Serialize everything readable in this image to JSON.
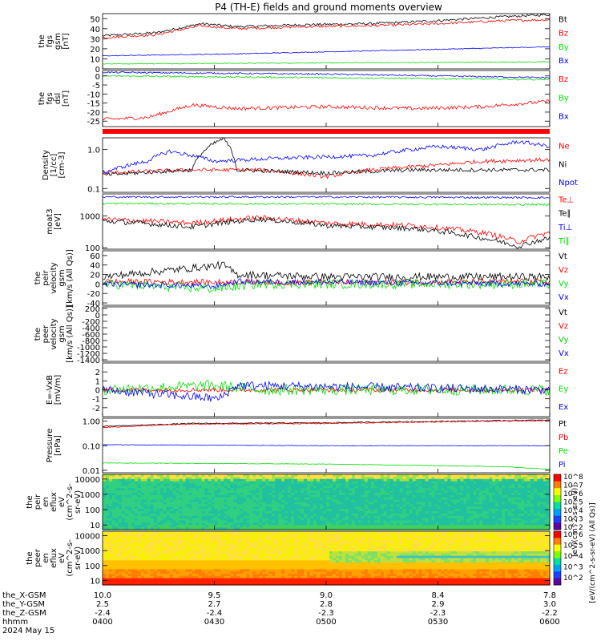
{
  "title": "P4 (TH-E) fields and ground moments overview",
  "colors": {
    "black": "#000000",
    "red": "#ff0000",
    "blue": "#0000ff",
    "green": "#00dd00"
  },
  "chart_data": [
    {
      "id": "p1",
      "type": "line",
      "ylabel": [
        "the",
        "fgs",
        "gsm",
        "[nT]"
      ],
      "ylim": [
        0,
        55
      ],
      "yticks": [
        0,
        10,
        20,
        30,
        40,
        50
      ],
      "series": [
        {
          "name": "Bt",
          "color": "black",
          "points": [
            [
              0,
              33
            ],
            [
              0.12,
              36
            ],
            [
              0.22,
              45
            ],
            [
              0.3,
              42
            ],
            [
              0.45,
              44
            ],
            [
              0.6,
              45
            ],
            [
              0.75,
              48
            ],
            [
              0.9,
              52
            ],
            [
              1,
              54
            ]
          ],
          "noise": 1.2
        },
        {
          "name": "Bz",
          "color": "red",
          "points": [
            [
              0,
              31
            ],
            [
              0.12,
              34
            ],
            [
              0.22,
              43
            ],
            [
              0.3,
              40
            ],
            [
              0.45,
              42
            ],
            [
              0.6,
              43
            ],
            [
              0.75,
              45
            ],
            [
              0.9,
              48
            ],
            [
              1,
              49
            ]
          ],
          "noise": 1.2
        },
        {
          "name": "By",
          "color": "green",
          "points": [
            [
              0,
              5
            ],
            [
              0.5,
              6
            ],
            [
              1,
              7
            ]
          ],
          "noise": 0.4
        },
        {
          "name": "Bx",
          "color": "blue",
          "points": [
            [
              0,
              13
            ],
            [
              0.3,
              15
            ],
            [
              0.6,
              18
            ],
            [
              1,
              22
            ]
          ],
          "noise": 0.4
        }
      ],
      "legend": [
        "Bt",
        "Bz",
        "By",
        "Bx"
      ]
    },
    {
      "id": "p2",
      "type": "line",
      "ylabel": [
        "the",
        "fgs",
        "dsl",
        "[nT]"
      ],
      "ylim": [
        -28,
        3
      ],
      "yticks": [
        -25,
        -20,
        -15,
        -10,
        -5,
        0
      ],
      "series": [
        {
          "name": "Bz",
          "color": "red",
          "points": [
            [
              0,
              -24
            ],
            [
              0.1,
              -23
            ],
            [
              0.2,
              -16
            ],
            [
              0.3,
              -18
            ],
            [
              0.5,
              -17
            ],
            [
              0.7,
              -18
            ],
            [
              0.85,
              -17
            ],
            [
              1,
              -14
            ]
          ],
          "noise": 1.0
        },
        {
          "name": "By",
          "color": "green",
          "points": [
            [
              0,
              0
            ],
            [
              0.5,
              -1
            ],
            [
              1,
              -2
            ]
          ],
          "noise": 0.4
        },
        {
          "name": "Bx",
          "color": "blue",
          "points": [
            [
              0,
              2
            ],
            [
              0.5,
              1
            ],
            [
              1,
              -1
            ]
          ],
          "noise": 0.4
        }
      ],
      "legend": [
        "Bz",
        "By",
        "Bx"
      ]
    },
    {
      "id": "p3",
      "type": "line",
      "ylabel": [
        "Density",
        "[1/cc]",
        "[cm-3]"
      ],
      "ylim": [
        0.08,
        2.0
      ],
      "log": true,
      "yticks": [
        0.1,
        1.0
      ],
      "yticklabels": [
        "0.1",
        "1.0"
      ],
      "series": [
        {
          "name": "Ne",
          "color": "red",
          "points": [
            [
              0,
              0.25
            ],
            [
              0.2,
              0.3
            ],
            [
              0.35,
              0.3
            ],
            [
              0.5,
              0.2
            ],
            [
              0.6,
              0.3
            ],
            [
              0.75,
              0.4
            ],
            [
              0.85,
              0.5
            ],
            [
              1,
              0.55
            ]
          ],
          "noise": 0.05
        },
        {
          "name": "Ni",
          "color": "black",
          "points": [
            [
              0,
              0.22
            ],
            [
              0.2,
              0.3
            ],
            [
              0.27,
              1.9
            ],
            [
              0.3,
              0.3
            ],
            [
              0.5,
              0.25
            ],
            [
              0.7,
              0.3
            ],
            [
              1,
              0.3
            ]
          ],
          "noise": 0.05
        },
        {
          "name": "Npot",
          "color": "blue",
          "points": [
            [
              0,
              0.25
            ],
            [
              0.1,
              0.5
            ],
            [
              0.15,
              0.9
            ],
            [
              0.25,
              0.5
            ],
            [
              0.4,
              0.6
            ],
            [
              0.6,
              0.7
            ],
            [
              0.75,
              1.2
            ],
            [
              0.85,
              1.0
            ],
            [
              0.93,
              1.6
            ],
            [
              1,
              1.2
            ]
          ],
          "noise": 0.05
        }
      ],
      "legend": [
        "Ne",
        "Ni",
        "Npot"
      ]
    },
    {
      "id": "p4",
      "type": "line",
      "ylabel": [
        "moat3",
        "[eV]"
      ],
      "ylim": [
        90,
        5000
      ],
      "log": true,
      "yticks": [
        100,
        1000
      ],
      "yticklabels": [
        "100",
        "1000"
      ],
      "series": [
        {
          "name": "Te⊥",
          "color": "red",
          "points": [
            [
              0,
              800
            ],
            [
              0.2,
              600
            ],
            [
              0.35,
              900
            ],
            [
              0.5,
              600
            ],
            [
              0.7,
              500
            ],
            [
              0.85,
              300
            ],
            [
              0.93,
              150
            ],
            [
              1,
              300
            ]
          ],
          "noise": 0.08
        },
        {
          "name": "Te∥",
          "color": "black",
          "points": [
            [
              0,
              700
            ],
            [
              0.2,
              450
            ],
            [
              0.35,
              800
            ],
            [
              0.5,
              500
            ],
            [
              0.7,
              400
            ],
            [
              0.85,
              200
            ],
            [
              0.93,
              110
            ],
            [
              1,
              200
            ]
          ],
          "noise": 0.08
        },
        {
          "name": "Ti⊥",
          "color": "blue",
          "points": [
            [
              0,
              4000
            ],
            [
              0.5,
              4000
            ],
            [
              1,
              3800
            ]
          ],
          "noise": 0.03
        },
        {
          "name": "Ti∥",
          "color": "green",
          "points": [
            [
              0,
              2500
            ],
            [
              0.5,
              2400
            ],
            [
              1,
              2300
            ]
          ],
          "noise": 0.03
        }
      ],
      "legend": [
        "Te⊥",
        "Te∥",
        "Ti⊥",
        "Ti∥"
      ]
    },
    {
      "id": "p5",
      "type": "line",
      "ylabel": [
        "the",
        "peir",
        "velocity",
        "gsm",
        "[km/s (All Qs)]"
      ],
      "ylim": [
        -45,
        70
      ],
      "yticks": [
        -40,
        -20,
        0,
        20,
        40,
        60
      ],
      "series": [
        {
          "name": "Vt",
          "color": "black",
          "points": [
            [
              0,
              15
            ],
            [
              0.27,
              40
            ],
            [
              0.3,
              20
            ],
            [
              0.5,
              15
            ],
            [
              1,
              15
            ]
          ],
          "noise": 8
        },
        {
          "name": "Vz",
          "color": "red",
          "points": [
            [
              0,
              5
            ],
            [
              0.5,
              3
            ],
            [
              1,
              5
            ]
          ],
          "noise": 6
        },
        {
          "name": "Vy",
          "color": "green",
          "points": [
            [
              0,
              0
            ],
            [
              0.25,
              -10
            ],
            [
              0.35,
              0
            ],
            [
              1,
              0
            ]
          ],
          "noise": 10
        },
        {
          "name": "Vx",
          "color": "blue",
          "points": [
            [
              0,
              0
            ],
            [
              0.25,
              -5
            ],
            [
              0.3,
              5
            ],
            [
              1,
              0
            ]
          ],
          "noise": 6
        }
      ],
      "legend": [
        "Vt",
        "Vz",
        "Vy",
        "Vx"
      ]
    },
    {
      "id": "p6",
      "type": "line",
      "ylabel": [
        "the",
        "peer",
        "velocity",
        "gsm",
        "[km/s (All Qs)]"
      ],
      "ylim": [
        -1450,
        250
      ],
      "yticks": [
        -1400,
        -1200,
        -1000,
        -800,
        -600,
        -400,
        -200,
        0,
        200
      ],
      "series": [],
      "legend": [
        "Vt",
        "Vz",
        "Vy",
        "Vx"
      ]
    },
    {
      "id": "p7",
      "type": "line",
      "ylabel": [
        "E=-VxB",
        "[mV/m]"
      ],
      "ylim": [
        -3,
        3
      ],
      "yticks": [
        -2,
        -1,
        0,
        1,
        2
      ],
      "series": [
        {
          "name": "Ez",
          "color": "red",
          "points": [
            [
              0,
              0
            ],
            [
              1,
              0
            ]
          ],
          "noise": 0.25
        },
        {
          "name": "Ey",
          "color": "green",
          "points": [
            [
              0,
              0
            ],
            [
              0.25,
              0.5
            ],
            [
              0.35,
              0
            ],
            [
              1,
              0
            ]
          ],
          "noise": 0.6
        },
        {
          "name": "Ex",
          "color": "blue",
          "points": [
            [
              0,
              0
            ],
            [
              0.26,
              -1
            ],
            [
              0.3,
              0.5
            ],
            [
              1,
              0
            ]
          ],
          "noise": 0.5
        }
      ],
      "legend": [
        "Ez",
        "Ey",
        "Ex"
      ]
    },
    {
      "id": "p8",
      "type": "line",
      "ylabel": [
        "Pressure",
        "[nPa]"
      ],
      "ylim": [
        0.008,
        1.3
      ],
      "log": true,
      "yticks": [
        0.01,
        0.1,
        1.0
      ],
      "yticklabels": [
        "0.01",
        "0.10",
        "1.00"
      ],
      "series": [
        {
          "name": "Pt",
          "color": "black",
          "points": [
            [
              0,
              0.6
            ],
            [
              0.2,
              0.8
            ],
            [
              0.5,
              0.85
            ],
            [
              0.8,
              1.0
            ],
            [
              1,
              1.1
            ]
          ],
          "noise": 0.02
        },
        {
          "name": "Pb",
          "color": "red",
          "points": [
            [
              0,
              0.55
            ],
            [
              0.2,
              0.75
            ],
            [
              0.5,
              0.8
            ],
            [
              0.8,
              0.95
            ],
            [
              1,
              1.05
            ]
          ],
          "noise": 0.02
        },
        {
          "name": "Pe",
          "color": "green",
          "points": [
            [
              0,
              0.02
            ],
            [
              0.5,
              0.018
            ],
            [
              0.9,
              0.014
            ],
            [
              1,
              0.011
            ]
          ],
          "noise": 0.01
        },
        {
          "name": "Pi",
          "color": "blue",
          "points": [
            [
              0,
              0.11
            ],
            [
              0.5,
              0.1
            ],
            [
              1,
              0.1
            ]
          ],
          "noise": 0.01
        }
      ],
      "legend": [
        "Pt",
        "Pb",
        "Pe",
        "Pi"
      ]
    },
    {
      "id": "s1",
      "type": "heatmap",
      "ylabel": [
        "the",
        "peir",
        "en",
        "eflux",
        "eV",
        "(cm^2-s-",
        "sr-eV)"
      ],
      "ylim": [
        5,
        20000
      ],
      "log": true,
      "yticks": [
        10,
        100,
        1000,
        10000
      ],
      "yticklabels": [
        "10",
        "100",
        "1000",
        "10000"
      ]
    },
    {
      "id": "s2",
      "type": "heatmap",
      "ylabel": [
        "the",
        "peer",
        "en",
        "eflux",
        "eV",
        "(cm^2-s-",
        "sr-eV)"
      ],
      "ylim": [
        5,
        20000
      ],
      "log": true,
      "yticks": [
        10,
        100,
        1000,
        10000
      ],
      "yticklabels": [
        "10",
        "100",
        "1000",
        "10000"
      ]
    }
  ],
  "colorbar": {
    "labels": [
      "10^8",
      "10^7",
      "10^6",
      "10^5",
      "10^4",
      "10^3",
      "10^2",
      "10^6",
      "10^5",
      "10^4",
      "10^3",
      "10^2"
    ],
    "title": "[eV/(cm^2-s-sr-eV) (All Qs)]",
    "title2": "[eV/(cm^2-s-sr-eV)]"
  },
  "xaxis": {
    "rows": [
      {
        "label": "the_X-GSM",
        "values": [
          "10.0",
          "9.5",
          "9.0",
          "8.4",
          "7.8"
        ]
      },
      {
        "label": "the_Y-GSM",
        "values": [
          "2.5",
          "2.7",
          "2.8",
          "2.9",
          "3.0"
        ]
      },
      {
        "label": "the_Z-GSM",
        "values": [
          "-2.4",
          "-2.4",
          "-2.3",
          "-2.3",
          "-2.2"
        ]
      },
      {
        "label": "hhmm",
        "values": [
          "0400",
          "0430",
          "0500",
          "0530",
          "0600"
        ]
      }
    ],
    "date": "2024 May 15"
  }
}
